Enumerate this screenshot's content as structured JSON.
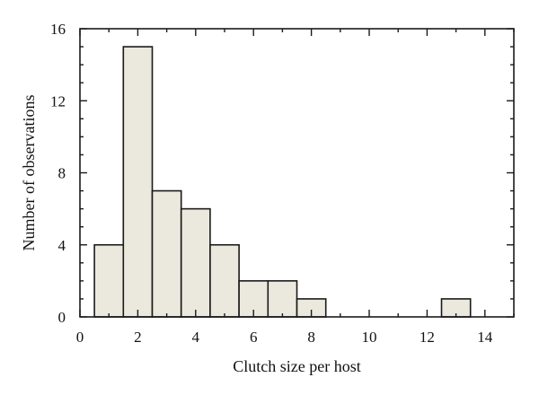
{
  "chart_data": {
    "type": "bar",
    "subtype": "histogram",
    "xlabel": "Clutch size per host",
    "ylabel": "Number of observations",
    "xlim": [
      0,
      15
    ],
    "ylim": [
      0,
      16
    ],
    "xticks": [
      0,
      2,
      4,
      6,
      8,
      10,
      12,
      14
    ],
    "xtick_labels": [
      "0",
      "2",
      "4",
      "6",
      "8",
      "10",
      "12",
      "14"
    ],
    "yticks": [
      0,
      4,
      8,
      12,
      16
    ],
    "ytick_labels": [
      "0",
      "4",
      "8",
      "12",
      "16"
    ],
    "bin_width": 1,
    "bins": [
      {
        "center": 1,
        "count": 4
      },
      {
        "center": 2,
        "count": 15
      },
      {
        "center": 3,
        "count": 7
      },
      {
        "center": 4,
        "count": 6
      },
      {
        "center": 5,
        "count": 4
      },
      {
        "center": 6,
        "count": 2
      },
      {
        "center": 7,
        "count": 2
      },
      {
        "center": 8,
        "count": 1
      },
      {
        "center": 13,
        "count": 1
      }
    ],
    "colors": {
      "bar_fill": "#ebe9dd",
      "bar_stroke": "#1a1a1a",
      "frame": "#1a1a1a"
    },
    "grid": false,
    "legend": "none"
  }
}
